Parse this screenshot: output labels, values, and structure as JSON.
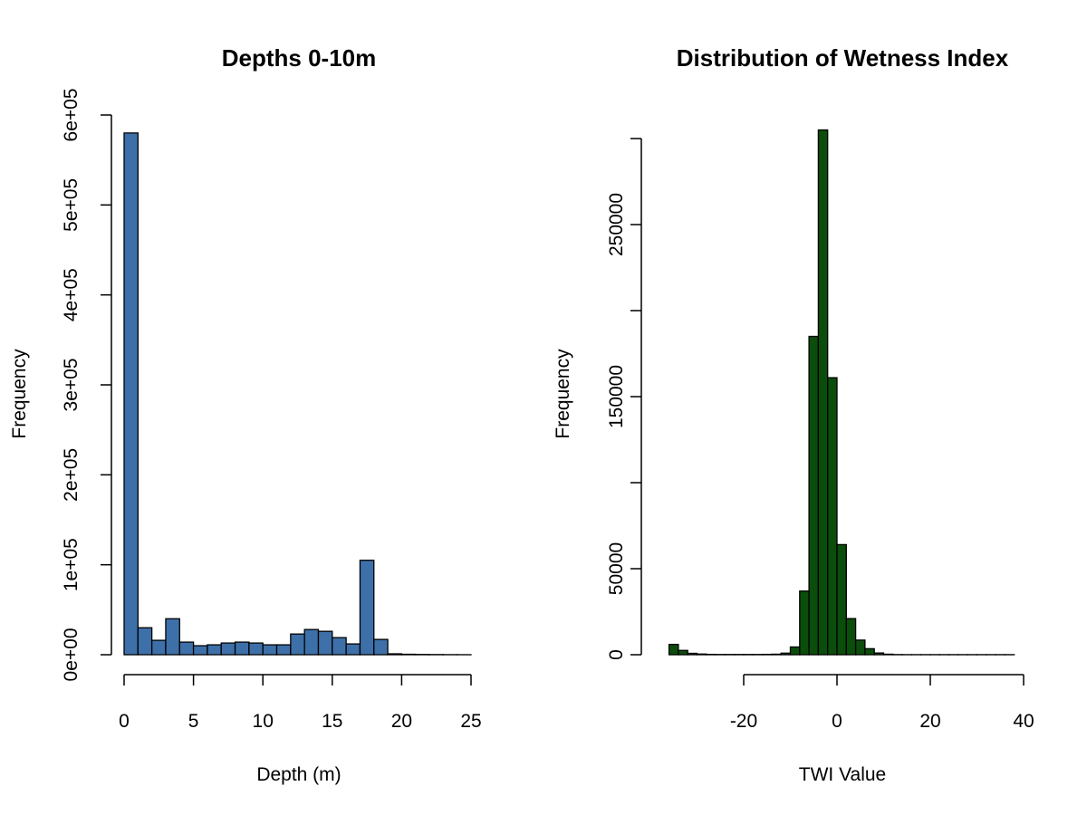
{
  "chart_data": [
    {
      "type": "bar",
      "title": "Depths 0-10m",
      "xlabel": "Depth (m)",
      "ylabel": "Frequency",
      "bar_color": "#3d70a8",
      "border_color": "#000000",
      "bin_width": 1,
      "bins_start": 0,
      "values": [
        580000,
        30000,
        16000,
        40000,
        14000,
        10000,
        11000,
        13000,
        14000,
        13000,
        11000,
        11000,
        23000,
        28000,
        26000,
        19000,
        12000,
        105000,
        17000,
        1000,
        500,
        300,
        200,
        100,
        50
      ],
      "xlim": [
        0,
        25
      ],
      "ylim": [
        0,
        600000
      ],
      "xticks": [
        0,
        5,
        10,
        15,
        20,
        25
      ],
      "xtick_labels": [
        "0",
        "5",
        "10",
        "15",
        "20",
        "25"
      ],
      "yticks": [
        0,
        100000,
        200000,
        300000,
        400000,
        500000,
        600000
      ],
      "ytick_labels": [
        "0e+00",
        "1e+05",
        "2e+05",
        "3e+05",
        "4e+05",
        "5e+05",
        "6e+05"
      ],
      "grid": false,
      "legend": "none"
    },
    {
      "type": "bar",
      "title": "Distribution of Wetness Index",
      "xlabel": "TWI Value",
      "ylabel": "Frequency",
      "bar_color": "#0b4d0b",
      "border_color": "#000000",
      "bin_width": 2,
      "bins_start": -36,
      "values": [
        6000,
        2500,
        800,
        400,
        200,
        150,
        150,
        150,
        150,
        150,
        200,
        300,
        900,
        4500,
        37000,
        185000,
        305000,
        161000,
        64000,
        21000,
        8500,
        3500,
        1000,
        300,
        100,
        50,
        50,
        50,
        50,
        50,
        50,
        50,
        50,
        50,
        50,
        50,
        50
      ],
      "xlim": [
        -20,
        40
      ],
      "ylim": [
        0,
        300000
      ],
      "xticks": [
        -20,
        0,
        20,
        40
      ],
      "xtick_labels": [
        "-20",
        "0",
        "20",
        "40"
      ],
      "yticks": [
        0,
        50000,
        100000,
        150000,
        200000,
        250000,
        300000
      ],
      "ytick_labels": [
        "0",
        "50000",
        "",
        "150000",
        "",
        "250000",
        ""
      ],
      "grid": false,
      "legend": "none"
    }
  ]
}
